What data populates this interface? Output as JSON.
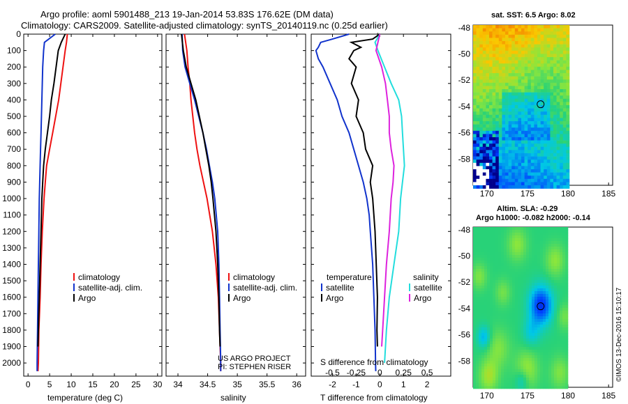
{
  "header": {
    "line1": "Argo profile: aoml 5901488_213 19-Jan-2014 53.83S 176.62E (DM data)",
    "line2": "Climatology: CARS2009. Satellite-adjusted climatology: synTS_20140119.nc (0.25d earlier)"
  },
  "colors": {
    "climatology": "#ee1111",
    "satellite": "#1133cc",
    "argo": "#000000",
    "sal_satellite": "#22dddd",
    "sal_climatology": "#dd22dd"
  },
  "credits": {
    "project": "US ARGO PROJECT",
    "pi": "PI: STEPHEN RISER",
    "imos": "©IMOS 13-Dec-2016 15:10:17"
  },
  "chart_data": [
    {
      "id": "temperature",
      "type": "line",
      "xlabel": "temperature (deg C)",
      "ylabel": "",
      "xlim": [
        -1,
        31
      ],
      "ylim": [
        2080,
        0
      ],
      "xticks": [
        "0",
        "5",
        "10",
        "15",
        "20",
        "25",
        "30"
      ],
      "yticks": [
        "0",
        "100",
        "200",
        "300",
        "400",
        "500",
        "600",
        "700",
        "800",
        "900",
        "1000",
        "1100",
        "1200",
        "1300",
        "1400",
        "1500",
        "1600",
        "1700",
        "1800",
        "1900",
        "2000"
      ],
      "legend": [
        "climatology",
        "satellite-adj. clim.",
        "Argo"
      ],
      "series": [
        {
          "name": "climatology",
          "depth": [
            0,
            50,
            100,
            200,
            300,
            400,
            500,
            600,
            700,
            800,
            900,
            1000,
            1200,
            1400,
            1600,
            1800,
            2000,
            2050
          ],
          "values": [
            9.1,
            8.9,
            8.6,
            8.1,
            7.6,
            7.1,
            6.4,
            5.7,
            5.0,
            4.3,
            4.0,
            3.7,
            3.3,
            3.0,
            2.8,
            2.5,
            2.4,
            2.3
          ]
        },
        {
          "name": "satellite-adj. clim.",
          "depth": [
            0,
            50,
            100,
            200,
            300,
            400,
            500,
            600,
            700,
            800,
            900,
            1000,
            1200,
            1400,
            1600,
            1800,
            2000,
            2050
          ],
          "values": [
            6.3,
            3.8,
            3.6,
            3.4,
            3.3,
            3.2,
            3.1,
            3.0,
            2.9,
            2.8,
            2.7,
            2.6,
            2.5,
            2.4,
            2.3,
            2.2,
            2.1,
            2.1
          ]
        },
        {
          "name": "Argo",
          "depth": [
            0,
            50,
            100,
            200,
            300,
            400,
            500,
            600,
            700,
            800,
            900,
            1000,
            1200,
            1400,
            1600,
            1800,
            1900
          ],
          "values": [
            8.6,
            7.7,
            7.0,
            6.5,
            6.0,
            5.4,
            5.0,
            4.5,
            4.0,
            3.6,
            3.4,
            3.2,
            3.0,
            2.8,
            2.6,
            2.4,
            2.3
          ]
        }
      ]
    },
    {
      "id": "salinity",
      "type": "line",
      "xlabel": "salinity",
      "xlim": [
        33.8,
        36.15
      ],
      "ylim": [
        2080,
        0
      ],
      "xticks": [
        "34",
        "34.5",
        "35",
        "35.5",
        "36"
      ],
      "legend": [
        "climatology",
        "satellite-adj. clim.",
        "Argo"
      ],
      "series": [
        {
          "name": "climatology",
          "depth": [
            0,
            100,
            200,
            300,
            400,
            500,
            600,
            700,
            800,
            900,
            1000,
            1200,
            1400,
            1600,
            1800,
            2000,
            2050
          ],
          "values": [
            34.11,
            34.15,
            34.17,
            34.2,
            34.22,
            34.25,
            34.28,
            34.32,
            34.37,
            34.43,
            34.49,
            34.58,
            34.64,
            34.68,
            34.7,
            34.72,
            34.72
          ]
        },
        {
          "name": "satellite-adj. clim.",
          "depth": [
            0,
            100,
            200,
            300,
            400,
            500,
            600,
            700,
            800,
            900,
            1000,
            1200,
            1400,
            1600,
            1800,
            2000,
            2050
          ],
          "values": [
            34.07,
            34.08,
            34.12,
            34.2,
            34.28,
            34.35,
            34.42,
            34.48,
            34.53,
            34.58,
            34.62,
            34.67,
            34.69,
            34.7,
            34.71,
            34.72,
            34.72
          ]
        },
        {
          "name": "Argo",
          "depth": [
            0,
            100,
            200,
            300,
            400,
            500,
            600,
            700,
            800,
            900,
            1000,
            1200,
            1400,
            1600,
            1800,
            1900
          ],
          "values": [
            34.06,
            34.09,
            34.14,
            34.22,
            34.3,
            34.36,
            34.42,
            34.47,
            34.52,
            34.56,
            34.59,
            34.64,
            34.67,
            34.69,
            34.7,
            34.71
          ]
        }
      ]
    },
    {
      "id": "difference",
      "type": "line",
      "xlabel": "T difference from climatology",
      "top_label": "S difference from climatology",
      "xlim": [
        -2.9,
        3.0
      ],
      "ylim": [
        2080,
        0
      ],
      "xticks": [
        "-2",
        "-1",
        "0",
        "1",
        "2"
      ],
      "s_ticks": [
        "-0.5",
        "-0.25",
        "0",
        "0.25",
        "0.5"
      ],
      "legend_left_title": "temperature",
      "legend_right_title": "salinity",
      "legend_left": [
        "satellite",
        "Argo"
      ],
      "legend_right": [
        "satellite",
        "Argo"
      ],
      "series": [
        {
          "name": "T satellite",
          "depth": [
            0,
            30,
            50,
            80,
            100,
            150,
            200,
            300,
            400,
            500,
            600,
            700,
            800,
            900,
            1000,
            1100,
            1200,
            1400,
            1600,
            1800,
            2000,
            2050
          ],
          "values": [
            -1.3,
            -2.0,
            -2.5,
            -2.6,
            -2.7,
            -2.6,
            -2.4,
            -2.1,
            -1.8,
            -1.6,
            -1.3,
            -1.1,
            -0.9,
            -0.7,
            -0.55,
            -0.45,
            -0.4,
            -0.3,
            -0.25,
            -0.2,
            -0.18,
            -0.17
          ]
        },
        {
          "name": "T Argo",
          "depth": [
            0,
            30,
            50,
            80,
            100,
            150,
            200,
            300,
            400,
            500,
            600,
            700,
            800,
            900,
            1000,
            1100,
            1200,
            1400,
            1600,
            1800,
            1900
          ],
          "values": [
            0.0,
            -0.3,
            -1.2,
            -0.8,
            -1.1,
            -1.3,
            -1.0,
            -1.2,
            -0.9,
            -1.0,
            -0.7,
            -0.6,
            -0.3,
            -0.4,
            -0.3,
            -0.25,
            -0.2,
            -0.15,
            -0.1,
            -0.12,
            -0.1
          ]
        },
        {
          "name": "S satellite",
          "depth": [
            0,
            50,
            100,
            200,
            300,
            400,
            500,
            600,
            700,
            800,
            900,
            1000,
            1200,
            1400,
            1600,
            1800,
            2000
          ],
          "values": [
            0.0,
            -0.05,
            -0.02,
            0.05,
            0.12,
            0.2,
            0.23,
            0.24,
            0.25,
            0.26,
            0.24,
            0.22,
            0.2,
            0.15,
            0.1,
            0.07,
            0.05
          ]
        },
        {
          "name": "S Argo",
          "depth": [
            0,
            50,
            100,
            200,
            300,
            400,
            500,
            600,
            700,
            800,
            900,
            1000,
            1200,
            1400,
            1600,
            1800,
            1900
          ],
          "values": [
            0.0,
            -0.02,
            -0.04,
            0.02,
            0.06,
            0.08,
            0.1,
            0.1,
            0.12,
            0.15,
            0.14,
            0.12,
            0.1,
            0.07,
            0.05,
            0.03,
            0.02
          ]
        }
      ]
    },
    {
      "id": "sst_map",
      "type": "heatmap",
      "title": "sat. SST: 6.5 Argo: 8.02",
      "xticks": [
        "170",
        "175",
        "180",
        "185"
      ],
      "yticks": [
        "-48",
        "-50",
        "-52",
        "-54",
        "-56",
        "-58"
      ],
      "marker": {
        "lon": 176.62,
        "lat": -53.83
      }
    },
    {
      "id": "sla_map",
      "type": "heatmap",
      "title1": "Altim. SLA: -0.29",
      "title2": "Argo h1000: -0.082 h2000: -0.14",
      "xticks": [
        "170",
        "175",
        "180",
        "185"
      ],
      "yticks": [
        "-48",
        "-50",
        "-52",
        "-54",
        "-56",
        "-58"
      ],
      "marker": {
        "lon": 176.62,
        "lat": -53.83
      }
    }
  ]
}
